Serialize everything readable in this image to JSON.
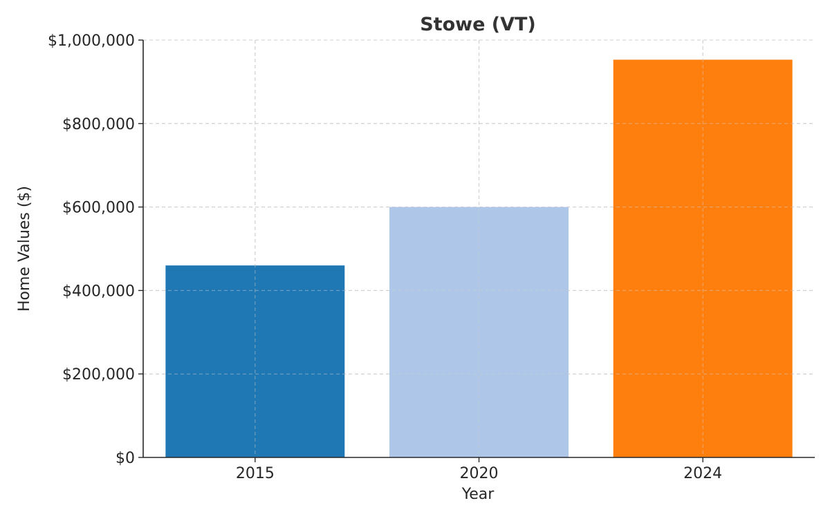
{
  "chart_data": {
    "type": "bar",
    "title": "Stowe (VT)",
    "xlabel": "Year",
    "ylabel": "Home Values ($)",
    "categories": [
      "2015",
      "2020",
      "2024"
    ],
    "values": [
      460000,
      600000,
      953000
    ],
    "bar_colors": [
      "#1f77b4",
      "#aec7e8",
      "#ff7f0e"
    ],
    "ylim": [
      0,
      1000000
    ],
    "yticks": [
      0,
      200000,
      400000,
      600000,
      800000,
      1000000
    ],
    "ytick_labels": [
      "$0",
      "$200,000",
      "$400,000",
      "$600,000",
      "$800,000",
      "$1,000,000"
    ],
    "grid": true,
    "legend": "none"
  }
}
